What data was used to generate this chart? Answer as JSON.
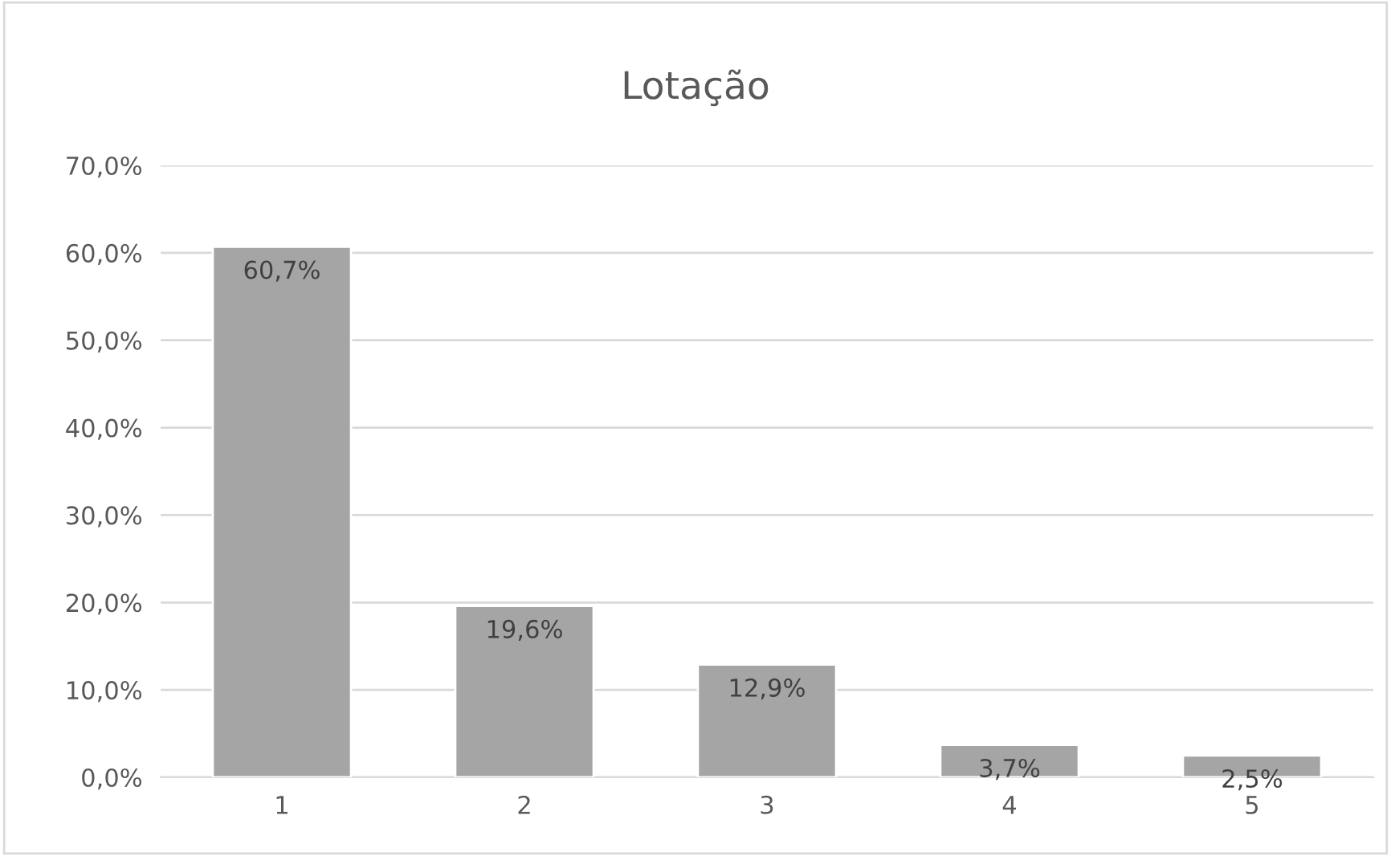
{
  "chart_data": {
    "type": "bar",
    "title": "Lotação",
    "categories": [
      "1",
      "2",
      "3",
      "4",
      "5"
    ],
    "values": [
      60.7,
      19.6,
      12.9,
      3.7,
      2.5
    ],
    "value_labels": [
      "60,7%",
      "19,6%",
      "12,9%",
      "3,7%",
      "2,5%"
    ],
    "color": "#a5a5a5",
    "ylim": [
      0,
      70
    ],
    "yticks": [
      {
        "value": 0,
        "label": "0,0%"
      },
      {
        "value": 10,
        "label": "10,0%"
      },
      {
        "value": 20,
        "label": "20,0%"
      },
      {
        "value": 30,
        "label": "30,0%"
      },
      {
        "value": 40,
        "label": "40,0%"
      },
      {
        "value": 50,
        "label": "50,0%"
      },
      {
        "value": 60,
        "label": "60,0%"
      },
      {
        "value": 70,
        "label": "70,0%"
      }
    ],
    "grid": "y",
    "legend": false
  }
}
